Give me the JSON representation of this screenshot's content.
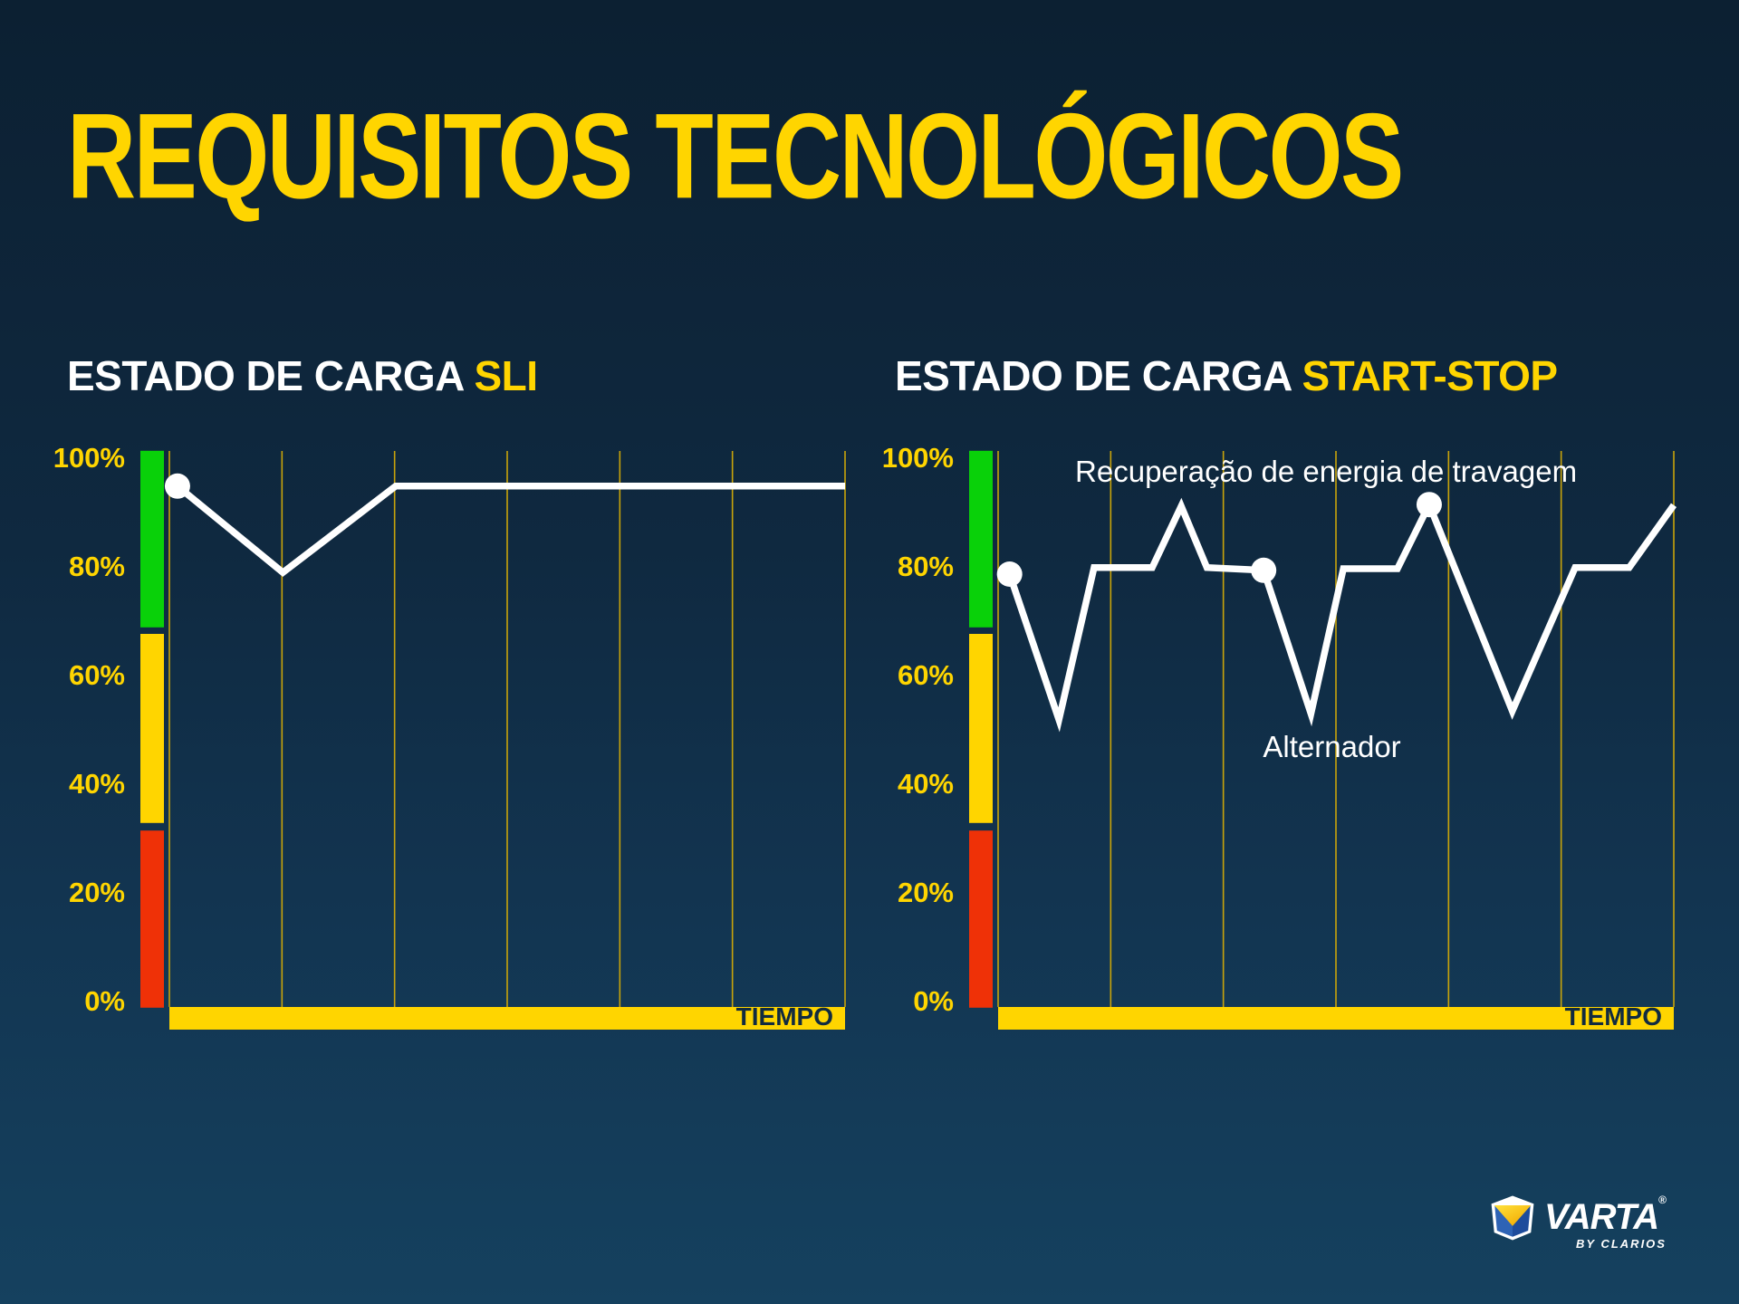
{
  "page": {
    "title": "REQUISITOS TECNOLÓGICOS"
  },
  "colors": {
    "background_top": "#0c2032",
    "background_bottom": "#15415f",
    "accent_yellow": "#ffd500",
    "grid_yellow": "#c9a40a",
    "zone_green": "#09d109",
    "zone_yellow": "#ffd500",
    "zone_red": "#ef3107",
    "line_white": "#ffffff",
    "axis_text_navy": "#112b40"
  },
  "logo": {
    "brand": "VARTA",
    "registered": "®",
    "byline": "BY CLARIOS"
  },
  "chart_data": [
    {
      "type": "line",
      "title": {
        "main": "ESTADO DE CARGA ",
        "accent": "SLI"
      },
      "xlabel": "TIEMPO",
      "ylim": [
        0,
        100
      ],
      "y_ticks": [
        {
          "label": "100%",
          "value": 100
        },
        {
          "label": "80%",
          "value": 80
        },
        {
          "label": "60%",
          "value": 60
        },
        {
          "label": "40%",
          "value": 40
        },
        {
          "label": "20%",
          "value": 20
        },
        {
          "label": "0%",
          "value": 0
        }
      ],
      "grid": {
        "vertical_lines": 7,
        "horizontal_lines": 0
      },
      "zones": [
        {
          "name": "green",
          "color": "#09d109",
          "from": 68.7,
          "to": 101.2
        },
        {
          "name": "yellow",
          "color": "#ffd500",
          "from": 32.7,
          "to": 67.5
        },
        {
          "name": "red",
          "color": "#ef3107",
          "from": -1.3,
          "to": 31.3
        }
      ],
      "series": [
        {
          "name": "estado de carga SLI",
          "color": "#ffffff",
          "points": [
            [
              1.2,
              94.7
            ],
            [
              16.8,
              78.8
            ],
            [
              33.5,
              94.7
            ],
            [
              100,
              94.7
            ]
          ],
          "dots": [
            [
              1.2,
              94.7
            ]
          ]
        }
      ],
      "annotations": []
    },
    {
      "type": "line",
      "title": {
        "main": "ESTADO DE CARGA ",
        "accent": "START-STOP"
      },
      "xlabel": "TIEMPO",
      "ylim": [
        0,
        100
      ],
      "y_ticks": [
        {
          "label": "100%",
          "value": 100
        },
        {
          "label": "80%",
          "value": 80
        },
        {
          "label": "60%",
          "value": 60
        },
        {
          "label": "40%",
          "value": 40
        },
        {
          "label": "20%",
          "value": 20
        },
        {
          "label": "0%",
          "value": 0
        }
      ],
      "grid": {
        "vertical_lines": 7,
        "horizontal_lines": 0
      },
      "zones": [
        {
          "name": "green",
          "color": "#09d109",
          "from": 68.7,
          "to": 101.2
        },
        {
          "name": "yellow",
          "color": "#ffd500",
          "from": 32.7,
          "to": 67.5
        },
        {
          "name": "red",
          "color": "#ef3107",
          "from": -1.3,
          "to": 31.3
        }
      ],
      "series": [
        {
          "name": "estado de carga start-stop",
          "color": "#ffffff",
          "points": [
            [
              1.7,
              78.5
            ],
            [
              9.0,
              51.7
            ],
            [
              14.2,
              79.7
            ],
            [
              22.8,
              79.7
            ],
            [
              27.1,
              91.0
            ],
            [
              30.9,
              79.7
            ],
            [
              39.3,
              79.2
            ],
            [
              46.3,
              52.8
            ],
            [
              51.1,
              79.5
            ],
            [
              59.1,
              79.5
            ],
            [
              63.8,
              91.3
            ],
            [
              76.1,
              53.3
            ],
            [
              85.4,
              79.7
            ],
            [
              93.4,
              79.7
            ],
            [
              100,
              91.2
            ]
          ],
          "dots": [
            [
              1.7,
              78.5
            ],
            [
              39.3,
              79.2
            ],
            [
              63.8,
              91.3
            ]
          ]
        }
      ],
      "annotations": [
        {
          "text": "Recuperação de energia de travagem",
          "x": 11.4,
          "y": 97.5
        },
        {
          "text": "Alternador",
          "x": 39.2,
          "y": 46.8
        }
      ]
    }
  ]
}
